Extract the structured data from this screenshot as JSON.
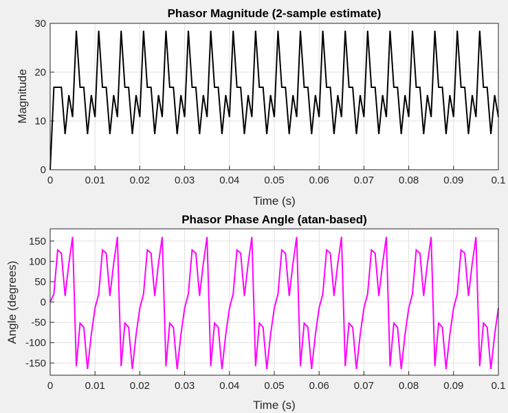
{
  "chart_data": [
    {
      "type": "line",
      "title": "Phasor Magnitude (2-sample estimate)",
      "xlabel": "Time (s)",
      "ylabel": "Magnitude",
      "xlim": [
        0,
        0.1
      ],
      "ylim": [
        0,
        30
      ],
      "xticks": [
        "0",
        "0.01",
        "0.02",
        "0.03",
        "0.04",
        "0.05",
        "0.06",
        "0.07",
        "0.08",
        "0.09",
        "0.1"
      ],
      "yticks": [
        "0",
        "10",
        "20",
        "30"
      ],
      "grid": true,
      "color": "#000000",
      "x": [
        0,
        0.00083,
        0.00167,
        0.0025,
        0.00333,
        0.00417,
        0.005,
        0.00583,
        0.00667,
        0.0075,
        0.00833,
        0.00917,
        0.01,
        0.01083,
        0.01167,
        0.0125,
        0.01333,
        0.01417,
        0.015,
        0.01583,
        0.01667,
        0.0175,
        0.01833,
        0.01917,
        0.02,
        0.02083,
        0.02167,
        0.0225,
        0.02333,
        0.02417,
        0.025,
        0.02583,
        0.02667,
        0.0275,
        0.02833,
        0.02917,
        0.03,
        0.03083,
        0.03167,
        0.0325,
        0.03333,
        0.03417,
        0.035,
        0.03583,
        0.03667,
        0.0375,
        0.03833,
        0.03917,
        0.04,
        0.04083,
        0.04167,
        0.0425,
        0.04333,
        0.04417,
        0.045,
        0.04583,
        0.04667,
        0.0475,
        0.04833,
        0.04917,
        0.05,
        0.05083,
        0.05167,
        0.0525,
        0.05333,
        0.05417,
        0.055,
        0.05583,
        0.05667,
        0.0575,
        0.05833,
        0.05917,
        0.06,
        0.06083,
        0.06167,
        0.0625,
        0.06333,
        0.06417,
        0.065,
        0.06583,
        0.06667,
        0.0675,
        0.06833,
        0.06917,
        0.07,
        0.07083,
        0.07167,
        0.0725,
        0.07333,
        0.07417,
        0.075,
        0.07583,
        0.07667,
        0.0775,
        0.07833,
        0.07917,
        0.08,
        0.08083,
        0.08167,
        0.0825,
        0.08333,
        0.08417,
        0.085,
        0.08583,
        0.08667,
        0.0875,
        0.08833,
        0.08917,
        0.09,
        0.09083,
        0.09167,
        0.0925,
        0.09333,
        0.09417,
        0.095,
        0.09583,
        0.09667,
        0.0975,
        0.09833,
        0.09917,
        0.1
      ],
      "y": [
        0,
        16.9,
        16.9,
        16.9,
        7.3,
        15.3,
        10.8,
        28.5,
        16.9,
        16.9,
        7.3,
        15.3,
        10.8,
        28.5,
        16.9,
        16.9,
        7.3,
        15.3,
        10.8,
        28.5,
        16.9,
        16.9,
        7.3,
        15.3,
        10.8,
        28.5,
        16.9,
        16.9,
        7.3,
        15.3,
        10.8,
        28.5,
        16.9,
        16.9,
        7.3,
        15.3,
        10.8,
        28.5,
        16.9,
        16.9,
        7.3,
        15.3,
        10.8,
        28.5,
        16.9,
        16.9,
        7.3,
        15.3,
        10.8,
        28.5,
        16.9,
        16.9,
        7.3,
        15.3,
        10.8,
        28.5,
        16.9,
        16.9,
        7.3,
        15.3,
        10.8,
        28.5,
        16.9,
        16.9,
        7.3,
        15.3,
        10.8,
        28.5,
        16.9,
        16.9,
        7.3,
        15.3,
        10.8,
        28.5,
        16.9,
        16.9,
        7.3,
        15.3,
        10.8,
        28.5,
        16.9,
        16.9,
        7.3,
        15.3,
        10.8,
        28.5,
        16.9,
        16.9,
        7.3,
        15.3,
        10.8,
        28.5,
        16.9,
        16.9,
        7.3,
        15.3,
        10.8,
        28.5,
        16.9,
        16.9,
        7.3,
        15.3,
        10.8,
        28.5,
        16.9,
        16.9,
        7.3,
        15.3,
        10.8,
        28.5,
        16.9,
        16.9,
        7.3,
        15.3,
        10.8,
        28.5,
        16.9,
        16.9,
        7.3,
        15.3,
        10.8
      ]
    },
    {
      "type": "line",
      "title": "Phasor Phase Angle (atan-based)",
      "xlabel": "Time (s)",
      "ylabel": "Angle (degrees)",
      "xlim": [
        0,
        0.1
      ],
      "ylim": [
        -180,
        180
      ],
      "xticks": [
        "0",
        "0.01",
        "0.02",
        "0.03",
        "0.04",
        "0.05",
        "0.06",
        "0.07",
        "0.08",
        "0.09",
        "0.1"
      ],
      "yticks": [
        "150",
        "100",
        "50",
        "0",
        "-50",
        "-100",
        "-150"
      ],
      "grid": true,
      "color": "#ff00ff",
      "x": [
        0,
        0.00083,
        0.00167,
        0.0025,
        0.00333,
        0.00417,
        0.005,
        0.00583,
        0.00667,
        0.0075,
        0.00833,
        0.00917,
        0.01,
        0.01083,
        0.01167,
        0.0125,
        0.01333,
        0.01417,
        0.015,
        0.01583,
        0.01667,
        0.0175,
        0.01833,
        0.01917,
        0.02,
        0.02083,
        0.02167,
        0.0225,
        0.02333,
        0.02417,
        0.025,
        0.02583,
        0.02667,
        0.0275,
        0.02833,
        0.02917,
        0.03,
        0.03083,
        0.03167,
        0.0325,
        0.03333,
        0.03417,
        0.035,
        0.03583,
        0.03667,
        0.0375,
        0.03833,
        0.03917,
        0.04,
        0.04083,
        0.04167,
        0.0425,
        0.04333,
        0.04417,
        0.045,
        0.04583,
        0.04667,
        0.0475,
        0.04833,
        0.04917,
        0.05,
        0.05083,
        0.05167,
        0.0525,
        0.05333,
        0.05417,
        0.055,
        0.05583,
        0.05667,
        0.0575,
        0.05833,
        0.05917,
        0.06,
        0.06083,
        0.06167,
        0.0625,
        0.06333,
        0.06417,
        0.065,
        0.06583,
        0.06667,
        0.0675,
        0.06833,
        0.06917,
        0.07,
        0.07083,
        0.07167,
        0.0725,
        0.07333,
        0.07417,
        0.075,
        0.07583,
        0.07667,
        0.0775,
        0.07833,
        0.07917,
        0.08,
        0.08083,
        0.08167,
        0.0825,
        0.08333,
        0.08417,
        0.085,
        0.08583,
        0.08667,
        0.0875,
        0.08833,
        0.08917,
        0.09,
        0.09083,
        0.09167,
        0.0925,
        0.09333,
        0.09417,
        0.095,
        0.09583,
        0.09667,
        0.0975,
        0.09833,
        0.09917,
        0.1
      ],
      "y": [
        0,
        20,
        128,
        120,
        15,
        95,
        160,
        -158,
        -52,
        -62,
        -165,
        -80,
        -15,
        20,
        128,
        120,
        15,
        95,
        160,
        -158,
        -52,
        -62,
        -165,
        -80,
        -15,
        20,
        128,
        120,
        15,
        95,
        160,
        -158,
        -52,
        -62,
        -165,
        -80,
        -15,
        20,
        128,
        120,
        15,
        95,
        160,
        -158,
        -52,
        -62,
        -165,
        -80,
        -15,
        20,
        128,
        120,
        15,
        95,
        160,
        -158,
        -52,
        -62,
        -165,
        -80,
        -15,
        20,
        128,
        120,
        15,
        95,
        160,
        -158,
        -52,
        -62,
        -165,
        -80,
        -15,
        20,
        128,
        120,
        15,
        95,
        160,
        -158,
        -52,
        -62,
        -165,
        -80,
        -15,
        20,
        128,
        120,
        15,
        95,
        160,
        -158,
        -52,
        -62,
        -165,
        -80,
        -15,
        20,
        128,
        120,
        15,
        95,
        160,
        -158,
        -52,
        -62,
        -165,
        -80,
        -15,
        20,
        128,
        120,
        15,
        95,
        160,
        -158,
        -52,
        -62,
        -165,
        -80,
        -15
      ]
    }
  ]
}
